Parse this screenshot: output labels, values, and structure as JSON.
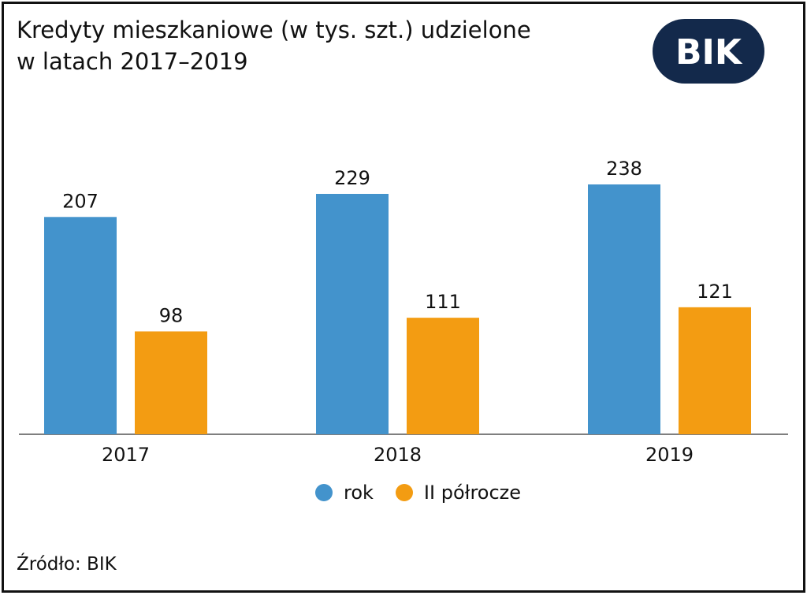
{
  "title": {
    "line1": "Kredyty mieszkaniowe (w tys. szt.) udzielone",
    "line2": "w latach 2017–2019"
  },
  "logo": {
    "text": "BIK",
    "color": "#13294b"
  },
  "source": "Źródło: BIK",
  "colors": {
    "rok": "#4393cc",
    "polrocze": "#f39c12"
  },
  "chart_data": {
    "type": "bar",
    "title": "Kredyty mieszkaniowe (w tys. szt.) udzielone w latach 2017–2019",
    "categories": [
      "2017",
      "2018",
      "2019"
    ],
    "series": [
      {
        "name": "rok",
        "values": [
          207,
          229,
          238
        ],
        "color": "#4393cc"
      },
      {
        "name": "II półrocze",
        "values": [
          98,
          111,
          121
        ],
        "color": "#f39c12"
      }
    ],
    "xlabel": "",
    "ylabel": "",
    "ylim": [
      0,
      238
    ],
    "grid": false,
    "legend": "bottom-center"
  }
}
